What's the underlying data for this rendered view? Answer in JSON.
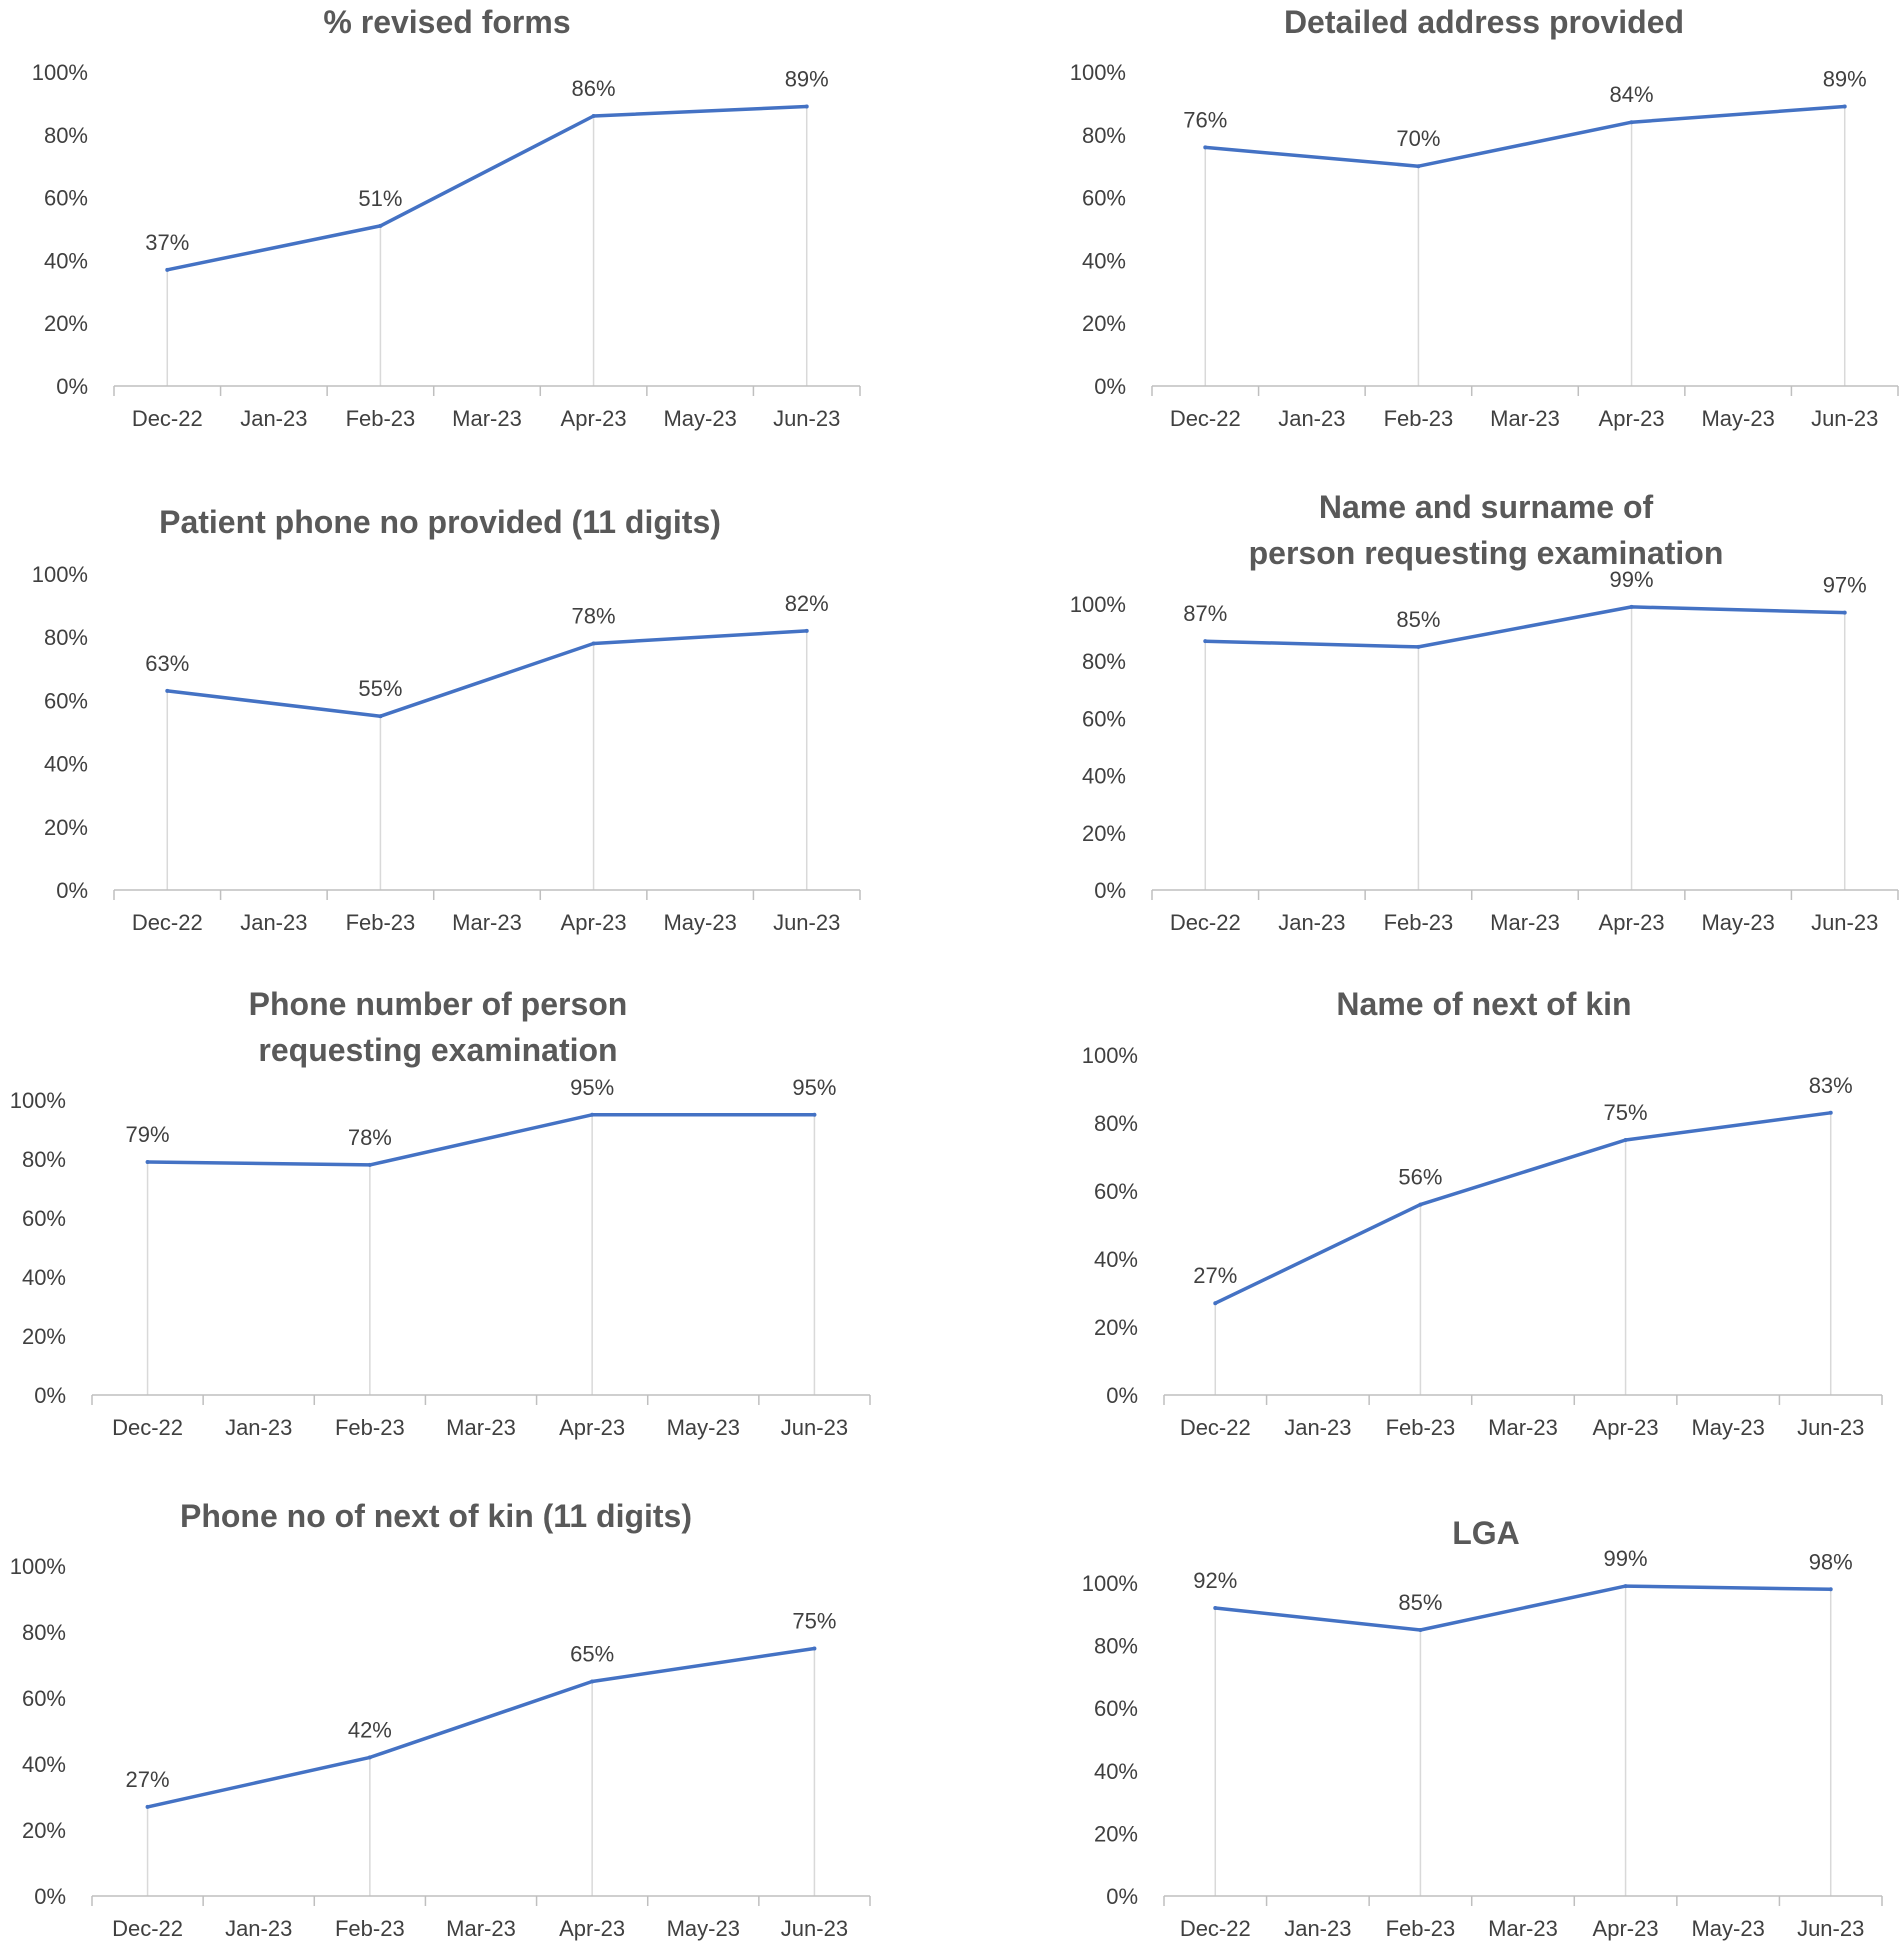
{
  "series_color": "#4472c4",
  "chart_data": [
    {
      "type": "line",
      "title": "% revised forms",
      "categories": [
        "Dec-22",
        "Jan-23",
        "Feb-23",
        "Mar-23",
        "Apr-23",
        "May-23",
        "Jun-23"
      ],
      "ytick_labels": [
        "0%",
        "20%",
        "40%",
        "60%",
        "80%",
        "100%"
      ],
      "ylim": [
        0,
        100
      ],
      "grid": "vertical-at-data-points",
      "series": [
        {
          "name": "% revised forms",
          "points": [
            {
              "x": "Dec-22",
              "y": 37
            },
            {
              "x": "Feb-23",
              "y": 51
            },
            {
              "x": "Apr-23",
              "y": 86
            },
            {
              "x": "Jun-23",
              "y": 89
            }
          ]
        }
      ],
      "data_labels": [
        "37%",
        "51%",
        "86%",
        "89%"
      ]
    },
    {
      "type": "line",
      "title": "Detailed address provided",
      "categories": [
        "Dec-22",
        "Jan-23",
        "Feb-23",
        "Mar-23",
        "Apr-23",
        "May-23",
        "Jun-23"
      ],
      "ytick_labels": [
        "0%",
        "20%",
        "40%",
        "60%",
        "80%",
        "100%"
      ],
      "ylim": [
        0,
        100
      ],
      "grid": "vertical-at-data-points",
      "series": [
        {
          "name": "Detailed address provided",
          "points": [
            {
              "x": "Dec-22",
              "y": 76
            },
            {
              "x": "Feb-23",
              "y": 70
            },
            {
              "x": "Apr-23",
              "y": 84
            },
            {
              "x": "Jun-23",
              "y": 89
            }
          ]
        }
      ],
      "data_labels": [
        "76%",
        "70%",
        "84%",
        "89%"
      ]
    },
    {
      "type": "line",
      "title": "Patient phone no provided (11 digits)",
      "categories": [
        "Dec-22",
        "Jan-23",
        "Feb-23",
        "Mar-23",
        "Apr-23",
        "May-23",
        "Jun-23"
      ],
      "ytick_labels": [
        "0%",
        "20%",
        "40%",
        "60%",
        "80%",
        "100%"
      ],
      "ylim": [
        0,
        100
      ],
      "grid": "vertical-at-data-points",
      "series": [
        {
          "name": "Patient phone no provided (11 digits)",
          "points": [
            {
              "x": "Dec-22",
              "y": 63
            },
            {
              "x": "Feb-23",
              "y": 55
            },
            {
              "x": "Apr-23",
              "y": 78
            },
            {
              "x": "Jun-23",
              "y": 82
            }
          ]
        }
      ],
      "data_labels": [
        "63%",
        "55%",
        "78%",
        "82%"
      ]
    },
    {
      "type": "line",
      "title": "Name and surname of person requesting examination",
      "categories": [
        "Dec-22",
        "Jan-23",
        "Feb-23",
        "Mar-23",
        "Apr-23",
        "May-23",
        "Jun-23"
      ],
      "ytick_labels": [
        "0%",
        "20%",
        "40%",
        "60%",
        "80%",
        "100%"
      ],
      "ylim": [
        0,
        100
      ],
      "grid": "vertical-at-data-points",
      "series": [
        {
          "name": "Name and surname of person requesting examination",
          "points": [
            {
              "x": "Dec-22",
              "y": 87
            },
            {
              "x": "Feb-23",
              "y": 85
            },
            {
              "x": "Apr-23",
              "y": 99
            },
            {
              "x": "Jun-23",
              "y": 97
            }
          ]
        }
      ],
      "data_labels": [
        "87%",
        "85%",
        "99%",
        "97%"
      ]
    },
    {
      "type": "line",
      "title": "Phone number of person requesting examination",
      "categories": [
        "Dec-22",
        "Jan-23",
        "Feb-23",
        "Mar-23",
        "Apr-23",
        "May-23",
        "Jun-23"
      ],
      "ytick_labels": [
        "0%",
        "20%",
        "40%",
        "60%",
        "80%",
        "100%"
      ],
      "ylim": [
        0,
        100
      ],
      "grid": "vertical-at-data-points",
      "series": [
        {
          "name": "Phone number of person requesting examination",
          "points": [
            {
              "x": "Dec-22",
              "y": 79
            },
            {
              "x": "Feb-23",
              "y": 78
            },
            {
              "x": "Apr-23",
              "y": 95
            },
            {
              "x": "Jun-23",
              "y": 95
            }
          ]
        }
      ],
      "data_labels": [
        "79%",
        "78%",
        "95%",
        "95%"
      ]
    },
    {
      "type": "line",
      "title": "Name of next of kin",
      "categories": [
        "Dec-22",
        "Jan-23",
        "Feb-23",
        "Mar-23",
        "Apr-23",
        "May-23",
        "Jun-23"
      ],
      "ytick_labels": [
        "0%",
        "20%",
        "40%",
        "60%",
        "80%",
        "100%"
      ],
      "ylim": [
        0,
        100
      ],
      "grid": "vertical-at-data-points",
      "series": [
        {
          "name": "Name of next of kin",
          "points": [
            {
              "x": "Dec-22",
              "y": 27
            },
            {
              "x": "Feb-23",
              "y": 56
            },
            {
              "x": "Apr-23",
              "y": 75
            },
            {
              "x": "Jun-23",
              "y": 83
            }
          ]
        }
      ],
      "data_labels": [
        "27%",
        "56%",
        "75%",
        "83%"
      ]
    },
    {
      "type": "line",
      "title": "Phone no of next of kin (11 digits)",
      "categories": [
        "Dec-22",
        "Jan-23",
        "Feb-23",
        "Mar-23",
        "Apr-23",
        "May-23",
        "Jun-23"
      ],
      "ytick_labels": [
        "0%",
        "20%",
        "40%",
        "60%",
        "80%",
        "100%"
      ],
      "ylim": [
        0,
        100
      ],
      "grid": "vertical-at-data-points",
      "series": [
        {
          "name": "Phone no of next of kin (11 digits)",
          "points": [
            {
              "x": "Dec-22",
              "y": 27
            },
            {
              "x": "Feb-23",
              "y": 42
            },
            {
              "x": "Apr-23",
              "y": 65
            },
            {
              "x": "Jun-23",
              "y": 75
            }
          ]
        }
      ],
      "data_labels": [
        "27%",
        "42%",
        "65%",
        "75%"
      ]
    },
    {
      "type": "line",
      "title": "LGA",
      "categories": [
        "Dec-22",
        "Jan-23",
        "Feb-23",
        "Mar-23",
        "Apr-23",
        "May-23",
        "Jun-23"
      ],
      "ytick_labels": [
        "0%",
        "20%",
        "40%",
        "60%",
        "80%",
        "100%"
      ],
      "ylim": [
        0,
        100
      ],
      "grid": "vertical-at-data-points",
      "series": [
        {
          "name": "LGA",
          "points": [
            {
              "x": "Dec-22",
              "y": 92
            },
            {
              "x": "Feb-23",
              "y": 85
            },
            {
              "x": "Apr-23",
              "y": 99
            },
            {
              "x": "Jun-23",
              "y": 98
            }
          ]
        }
      ],
      "data_labels": [
        "92%",
        "85%",
        "99%",
        "98%"
      ]
    }
  ]
}
